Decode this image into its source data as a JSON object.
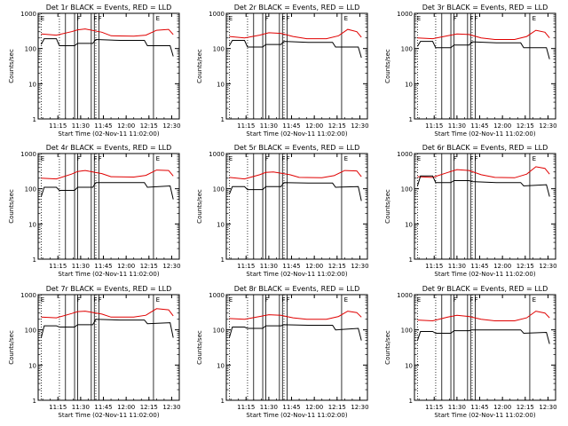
{
  "figure": {
    "background": "#ffffff",
    "axis_color": "#000000",
    "events_color": "#000000",
    "lld_color": "#e00000"
  },
  "chart_data": [
    {
      "type": "line",
      "title": "Det 1r BLACK = Events, RED = LLD",
      "xlabel": "Start Time (02-Nov-11 11:02:00)",
      "ylabel": "Counts/sec",
      "y_scale": "log",
      "ylim": [
        1,
        1000
      ],
      "x_tick_labels": [
        "11:15",
        "11:30",
        "11:45",
        "12:00",
        "12:15",
        "12:30"
      ],
      "y_tick_labels": [
        "1",
        "10",
        "100",
        "1000"
      ],
      "flag_labels": [
        "E",
        "F",
        "F",
        "F",
        "E"
      ],
      "series": [
        {
          "values": {
            "x": [
              "11:04",
              "11:14",
              "11:24",
              "11:28",
              "11:33",
              "11:44",
              "11:50",
              "12:05",
              "12:13",
              "12:20",
              "12:28",
              "12:31"
            ],
            "y": [
              260,
              240,
              300,
              340,
              360,
              290,
              230,
              225,
              240,
              330,
              350,
              250
            ]
          }
        },
        {
          "values": {
            "x": [
              "11:04",
              "11:06",
              "11:14",
              "11:16",
              "11:26",
              "11:28",
              "11:38",
              "11:40",
              "11:56",
              "12:12",
              "12:14",
              "12:29",
              "12:31"
            ],
            "y": [
              130,
              190,
              190,
              120,
              120,
              140,
              140,
              180,
              170,
              170,
              120,
              120,
              60
            ]
          }
        }
      ]
    },
    {
      "type": "line",
      "title": "Det 2r BLACK = Events, RED = LLD",
      "xlabel": "Start Time (02-Nov-11 11:02:00)",
      "ylabel": "Counts/sec",
      "y_scale": "log",
      "ylim": [
        1,
        1000
      ],
      "x_tick_labels": [
        "11:15",
        "11:30",
        "11:45",
        "12:00",
        "12:15",
        "12:30"
      ],
      "y_tick_labels": [
        "1",
        "10",
        "100",
        "1000"
      ],
      "flag_labels": [
        "E",
        "F",
        "F",
        "F",
        "E"
      ],
      "series": [
        {
          "values": {
            "x": [
              "11:04",
              "11:14",
              "11:24",
              "11:30",
              "11:38",
              "11:46",
              "11:55",
              "12:08",
              "12:16",
              "12:22",
              "12:28",
              "12:31"
            ],
            "y": [
              220,
              200,
              240,
              280,
              270,
              220,
              190,
              190,
              230,
              350,
              300,
              210
            ]
          }
        },
        {
          "values": {
            "x": [
              "11:04",
              "11:06",
              "11:14",
              "11:16",
              "11:26",
              "11:28",
              "11:38",
              "11:40",
              "11:56",
              "12:12",
              "12:14",
              "12:29",
              "12:31"
            ],
            "y": [
              120,
              170,
              170,
              110,
              110,
              130,
              130,
              160,
              150,
              150,
              110,
              110,
              55
            ]
          }
        }
      ]
    },
    {
      "type": "line",
      "title": "Det 3r BLACK = Events, RED = LLD",
      "xlabel": "Start Time (02-Nov-11 11:02:00)",
      "ylabel": "Counts/sec",
      "y_scale": "log",
      "ylim": [
        1,
        1000
      ],
      "x_tick_labels": [
        "11:15",
        "11:30",
        "11:45",
        "12:00",
        "12:15",
        "12:30"
      ],
      "y_tick_labels": [
        "1",
        "10",
        "100",
        "1000"
      ],
      "flag_labels": [
        "E",
        "F",
        "F",
        "F",
        "E"
      ],
      "series": [
        {
          "values": {
            "x": [
              "11:04",
              "11:14",
              "11:24",
              "11:30",
              "11:38",
              "11:46",
              "11:55",
              "12:08",
              "12:16",
              "12:22",
              "12:28",
              "12:31"
            ],
            "y": [
              200,
              190,
              230,
              260,
              250,
              200,
              180,
              180,
              220,
              330,
              290,
              200
            ]
          }
        },
        {
          "values": {
            "x": [
              "11:04",
              "11:06",
              "11:14",
              "11:16",
              "11:26",
              "11:28",
              "11:38",
              "11:40",
              "11:56",
              "12:12",
              "12:14",
              "12:29",
              "12:31"
            ],
            "y": [
              115,
              160,
              160,
              105,
              105,
              125,
              125,
              155,
              145,
              145,
              105,
              105,
              50
            ]
          }
        }
      ]
    },
    {
      "type": "line",
      "title": "Det 4r BLACK = Events, RED = LLD",
      "xlabel": "Start Time (02-Nov-11 11:02:00)",
      "ylabel": "Counts/sec",
      "y_scale": "log",
      "ylim": [
        1,
        1000
      ],
      "x_tick_labels": [
        "11:15",
        "11:30",
        "11:45",
        "12:00",
        "12:15",
        "12:30"
      ],
      "y_tick_labels": [
        "1",
        "10",
        "100",
        "1000"
      ],
      "flag_labels": [
        "E",
        "F",
        "F",
        "F",
        "E"
      ],
      "series": [
        {
          "values": {
            "x": [
              "11:04",
              "11:14",
              "11:24",
              "11:28",
              "11:33",
              "11:44",
              "11:50",
              "12:05",
              "12:13",
              "12:20",
              "12:28",
              "12:31"
            ],
            "y": [
              200,
              190,
              260,
              310,
              330,
              270,
              220,
              215,
              240,
              340,
              330,
              230
            ]
          }
        },
        {
          "values": {
            "x": [
              "11:04",
              "11:06",
              "11:14",
              "11:16",
              "11:26",
              "11:28",
              "11:38",
              "11:40",
              "11:56",
              "12:12",
              "12:14",
              "12:29",
              "12:31"
            ],
            "y": [
              60,
              110,
              110,
              90,
              90,
              110,
              110,
              150,
              150,
              150,
              110,
              120,
              50
            ]
          }
        }
      ]
    },
    {
      "type": "line",
      "title": "Det 5r BLACK = Events, RED = LLD",
      "xlabel": "Start Time (02-Nov-11 11:02:00)",
      "ylabel": "Counts/sec",
      "y_scale": "log",
      "ylim": [
        1,
        1000
      ],
      "x_tick_labels": [
        "11:15",
        "11:30",
        "11:45",
        "12:00",
        "12:15",
        "12:30"
      ],
      "y_tick_labels": [
        "1",
        "10",
        "100",
        "1000"
      ],
      "flag_labels": [
        "E",
        "F",
        "F",
        "F",
        "E"
      ],
      "series": [
        {
          "values": {
            "x": [
              "11:04",
              "11:14",
              "11:24",
              "11:28",
              "11:33",
              "11:44",
              "11:50",
              "12:05",
              "12:13",
              "12:20",
              "12:28",
              "12:31"
            ],
            "y": [
              210,
              190,
              250,
              290,
              300,
              250,
              210,
              205,
              235,
              330,
              320,
              220
            ]
          }
        },
        {
          "values": {
            "x": [
              "11:04",
              "11:06",
              "11:14",
              "11:16",
              "11:26",
              "11:28",
              "11:38",
              "11:40",
              "11:56",
              "12:12",
              "12:14",
              "12:29",
              "12:31"
            ],
            "y": [
              70,
              115,
              115,
              95,
              95,
              115,
              115,
              150,
              145,
              145,
              110,
              115,
              45
            ]
          }
        }
      ]
    },
    {
      "type": "line",
      "title": "Det 6r BLACK = Events, RED = LLD",
      "xlabel": "Start Time (02-Nov-11 11:02:00)",
      "ylabel": "Counts/sec",
      "y_scale": "log",
      "ylim": [
        1,
        1000
      ],
      "x_tick_labels": [
        "11:15",
        "11:30",
        "11:45",
        "12:00",
        "12:15",
        "12:30"
      ],
      "y_tick_labels": [
        "1",
        "10",
        "100",
        "1000"
      ],
      "flag_labels": [
        "E",
        "F",
        "F",
        "F",
        "E"
      ],
      "series": [
        {
          "values": {
            "x": [
              "11:04",
              "11:14",
              "11:24",
              "11:30",
              "11:38",
              "11:46",
              "11:55",
              "12:08",
              "12:16",
              "12:22",
              "12:28",
              "12:31"
            ],
            "y": [
              220,
              210,
              290,
              350,
              330,
              250,
              210,
              205,
              260,
              420,
              380,
              260
            ]
          }
        },
        {
          "values": {
            "x": [
              "11:04",
              "11:06",
              "11:14",
              "11:16",
              "11:26",
              "11:28",
              "11:38",
              "11:40",
              "11:56",
              "12:12",
              "12:14",
              "12:29",
              "12:31"
            ],
            "y": [
              120,
              230,
              230,
              150,
              150,
              170,
              170,
              160,
              150,
              150,
              120,
              130,
              60
            ]
          }
        }
      ]
    },
    {
      "type": "line",
      "title": "Det 7r BLACK = Events, RED = LLD",
      "xlabel": "Start Time (02-Nov-11 11:02:00)",
      "ylabel": "Counts/sec",
      "y_scale": "log",
      "ylim": [
        1,
        1000
      ],
      "x_tick_labels": [
        "11:15",
        "11:30",
        "11:45",
        "12:00",
        "12:15",
        "12:30"
      ],
      "y_tick_labels": [
        "1",
        "10",
        "100",
        "1000"
      ],
      "flag_labels": [
        "E",
        "F",
        "F",
        "F",
        "E"
      ],
      "series": [
        {
          "values": {
            "x": [
              "11:04",
              "11:14",
              "11:24",
              "11:28",
              "11:33",
              "11:44",
              "11:50",
              "12:05",
              "12:13",
              "12:20",
              "12:28",
              "12:31"
            ],
            "y": [
              230,
              220,
              290,
              330,
              340,
              280,
              230,
              230,
              260,
              400,
              370,
              250
            ]
          }
        },
        {
          "values": {
            "x": [
              "11:04",
              "11:06",
              "11:14",
              "11:16",
              "11:26",
              "11:28",
              "11:38",
              "11:40",
              "11:56",
              "12:12",
              "12:14",
              "12:29",
              "12:31"
            ],
            "y": [
              60,
              130,
              130,
              120,
              120,
              140,
              140,
              200,
              190,
              190,
              150,
              160,
              60
            ]
          }
        }
      ]
    },
    {
      "type": "line",
      "title": "Det 8r BLACK = Events, RED = LLD",
      "xlabel": "Start Time (02-Nov-11 11:02:00)",
      "ylabel": "Counts/sec",
      "y_scale": "log",
      "ylim": [
        1,
        1000
      ],
      "x_tick_labels": [
        "11:15",
        "11:30",
        "11:45",
        "12:00",
        "12:15",
        "12:30"
      ],
      "y_tick_labels": [
        "1",
        "10",
        "100",
        "1000"
      ],
      "flag_labels": [
        "E",
        "F",
        "F",
        "F",
        "E"
      ],
      "series": [
        {
          "values": {
            "x": [
              "11:04",
              "11:14",
              "11:24",
              "11:30",
              "11:38",
              "11:46",
              "11:55",
              "12:08",
              "12:16",
              "12:22",
              "12:28",
              "12:31"
            ],
            "y": [
              210,
              200,
              240,
              270,
              260,
              220,
              200,
              200,
              240,
              340,
              310,
              230
            ]
          }
        },
        {
          "values": {
            "x": [
              "11:04",
              "11:06",
              "11:14",
              "11:16",
              "11:26",
              "11:28",
              "11:38",
              "11:40",
              "11:56",
              "12:12",
              "12:14",
              "12:29",
              "12:31"
            ],
            "y": [
              60,
              120,
              120,
              110,
              110,
              130,
              130,
              140,
              135,
              135,
              100,
              110,
              50
            ]
          }
        }
      ]
    },
    {
      "type": "line",
      "title": "Det 9r BLACK = Events, RED = LLD",
      "xlabel": "Start Time (02-Nov-11 11:02:00)",
      "ylabel": "Counts/sec",
      "y_scale": "log",
      "ylim": [
        1,
        1000
      ],
      "x_tick_labels": [
        "11:15",
        "11:30",
        "11:45",
        "12:00",
        "12:15",
        "12:30"
      ],
      "y_tick_labels": [
        "1",
        "10",
        "100",
        "1000"
      ],
      "flag_labels": [
        "E",
        "F",
        "F",
        "F",
        "E"
      ],
      "series": [
        {
          "values": {
            "x": [
              "11:04",
              "11:14",
              "11:24",
              "11:30",
              "11:38",
              "11:46",
              "11:55",
              "12:08",
              "12:16",
              "12:22",
              "12:28",
              "12:31"
            ],
            "y": [
              190,
              180,
              230,
              260,
              240,
              200,
              180,
              180,
              220,
              340,
              300,
              220
            ]
          }
        },
        {
          "values": {
            "x": [
              "11:04",
              "11:06",
              "11:14",
              "11:16",
              "11:26",
              "11:28",
              "11:38",
              "11:40",
              "11:56",
              "12:12",
              "12:14",
              "12:29",
              "12:31"
            ],
            "y": [
              50,
              90,
              90,
              80,
              80,
              95,
              95,
              100,
              100,
              100,
              80,
              85,
              40
            ]
          }
        }
      ]
    }
  ]
}
